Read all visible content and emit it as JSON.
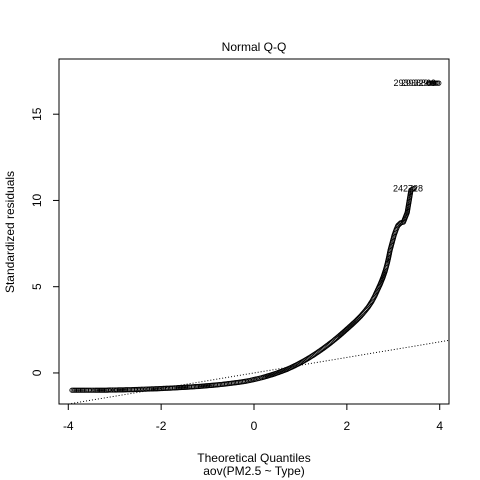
{
  "chart_data": {
    "type": "scatter",
    "title": "Normal Q-Q",
    "xlabel": "Theoretical Quantiles",
    "subtitle": "aov(PM2.5 ~ Type)",
    "ylabel": "Standardized residuals",
    "xlim": [
      -4.2,
      4.2
    ],
    "ylim": [
      -1.8,
      18.2
    ],
    "x_ticks": [
      -4,
      -2,
      0,
      2,
      4
    ],
    "y_ticks": [
      0,
      5,
      10,
      15
    ],
    "reference_line": {
      "intercept": 0.0,
      "slope": 0.45,
      "style": "dotted"
    },
    "point_labels": [
      {
        "text": "2939329",
        "x": 3.76,
        "y": 16.8
      },
      {
        "text": "2938869",
        "x": 3.92,
        "y": 16.8
      },
      {
        "text": "242728",
        "x": 3.64,
        "y": 10.7
      }
    ],
    "series": [
      {
        "points": [
          [
            -3.92,
            -1.0
          ],
          [
            -3.64,
            -1.0
          ],
          [
            -3.52,
            -1.0
          ],
          [
            -3.42,
            -1.0
          ],
          [
            -3.34,
            -1.0
          ],
          [
            -3.26,
            -1.0
          ],
          [
            -3.18,
            -1.0
          ],
          [
            -3.12,
            -0.99
          ],
          [
            -3.05,
            -0.99
          ],
          [
            -2.98,
            -0.99
          ],
          [
            -2.9,
            -0.98
          ],
          [
            -2.82,
            -0.98
          ],
          [
            -2.74,
            -0.97
          ],
          [
            -2.65,
            -0.97
          ],
          [
            -2.56,
            -0.96
          ],
          [
            -2.46,
            -0.95
          ],
          [
            -2.36,
            -0.94
          ],
          [
            -2.26,
            -0.93
          ],
          [
            -2.15,
            -0.92
          ],
          [
            -2.04,
            -0.91
          ],
          [
            -1.92,
            -0.89
          ],
          [
            -1.8,
            -0.88
          ],
          [
            -1.68,
            -0.86
          ],
          [
            -1.55,
            -0.84
          ],
          [
            -1.42,
            -0.82
          ],
          [
            -1.3,
            -0.8
          ],
          [
            -1.18,
            -0.78
          ],
          [
            -1.05,
            -0.75
          ],
          [
            -0.92,
            -0.72
          ],
          [
            -0.8,
            -0.69
          ],
          [
            -0.68,
            -0.66
          ],
          [
            -0.56,
            -0.62
          ],
          [
            -0.44,
            -0.58
          ],
          [
            -0.32,
            -0.54
          ],
          [
            -0.2,
            -0.49
          ],
          [
            -0.1,
            -0.44
          ],
          [
            0.0,
            -0.38
          ],
          [
            0.1,
            -0.32
          ],
          [
            0.2,
            -0.25
          ],
          [
            0.3,
            -0.17
          ],
          [
            0.4,
            -0.09
          ],
          [
            0.5,
            0.0
          ],
          [
            0.6,
            0.1
          ],
          [
            0.7,
            0.2
          ],
          [
            0.8,
            0.32
          ],
          [
            0.9,
            0.45
          ],
          [
            1.0,
            0.59
          ],
          [
            1.1,
            0.74
          ],
          [
            1.2,
            0.9
          ],
          [
            1.3,
            1.07
          ],
          [
            1.4,
            1.25
          ],
          [
            1.5,
            1.44
          ],
          [
            1.6,
            1.64
          ],
          [
            1.7,
            1.85
          ],
          [
            1.8,
            2.07
          ],
          [
            1.9,
            2.3
          ],
          [
            2.0,
            2.54
          ],
          [
            2.1,
            2.78
          ],
          [
            2.2,
            3.03
          ],
          [
            2.3,
            3.3
          ],
          [
            2.38,
            3.55
          ],
          [
            2.46,
            3.82
          ],
          [
            2.54,
            4.15
          ],
          [
            2.6,
            4.45
          ],
          [
            2.66,
            4.8
          ],
          [
            2.72,
            5.15
          ],
          [
            2.78,
            5.55
          ],
          [
            2.83,
            5.95
          ],
          [
            2.87,
            6.35
          ],
          [
            2.9,
            6.7
          ],
          [
            2.93,
            7.1
          ],
          [
            2.96,
            7.4
          ],
          [
            2.99,
            7.7
          ],
          [
            3.02,
            8.0
          ],
          [
            3.06,
            8.3
          ],
          [
            3.1,
            8.55
          ],
          [
            3.16,
            8.7
          ],
          [
            3.22,
            8.75
          ],
          [
            3.3,
            9.3
          ],
          [
            3.38,
            10.6
          ],
          [
            3.45,
            10.7
          ],
          [
            3.76,
            16.8
          ],
          [
            3.92,
            16.8
          ],
          [
            3.98,
            16.8
          ]
        ]
      }
    ]
  }
}
